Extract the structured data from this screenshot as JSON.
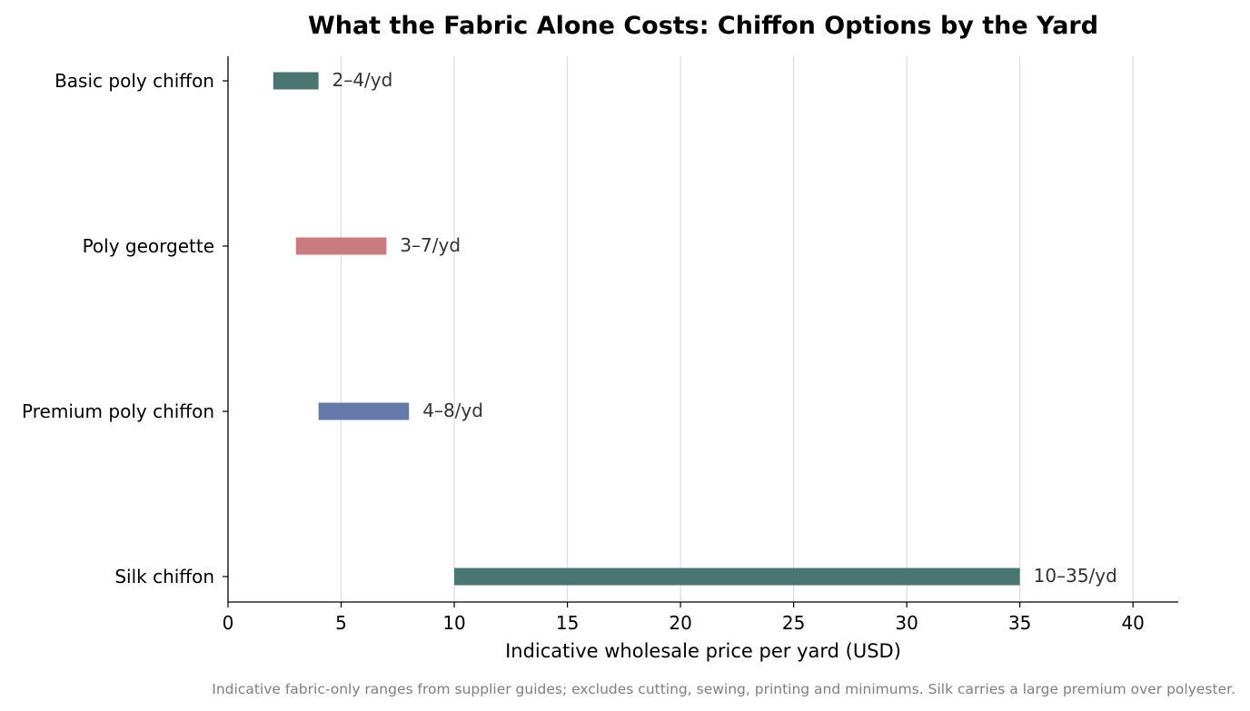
{
  "chart_data": {
    "type": "bar",
    "orientation": "horizontal",
    "title": "What the Fabric Alone Costs: Chiffon Options by the Yard",
    "xlabel": "Indicative wholesale price per yard (USD)",
    "ylabel": "",
    "xlim": [
      0,
      42
    ],
    "xticks": [
      0,
      5,
      10,
      15,
      20,
      25,
      30,
      35,
      40
    ],
    "grid": "vertical",
    "categories": [
      "Basic poly chiffon",
      "Poly georgette",
      "Premium poly chiffon",
      "Silk chiffon"
    ],
    "ranges": [
      {
        "category": "Basic poly chiffon",
        "low": 2,
        "high": 4,
        "label": "2–4/yd",
        "color": "#4a7570"
      },
      {
        "category": "Poly georgette",
        "low": 3,
        "high": 7,
        "label": "3–7/yd",
        "color": "#c97b80"
      },
      {
        "category": "Premium poly chiffon",
        "low": 4,
        "high": 8,
        "label": "4–8/yd",
        "color": "#6679ab"
      },
      {
        "category": "Silk chiffon",
        "low": 10,
        "high": 35,
        "label": "10–35/yd",
        "color": "#4a7570"
      }
    ],
    "footnote": "Indicative fabric-only ranges from supplier guides; excludes cutting, sewing, printing and minimums. Silk carries a large premium over polyester."
  }
}
